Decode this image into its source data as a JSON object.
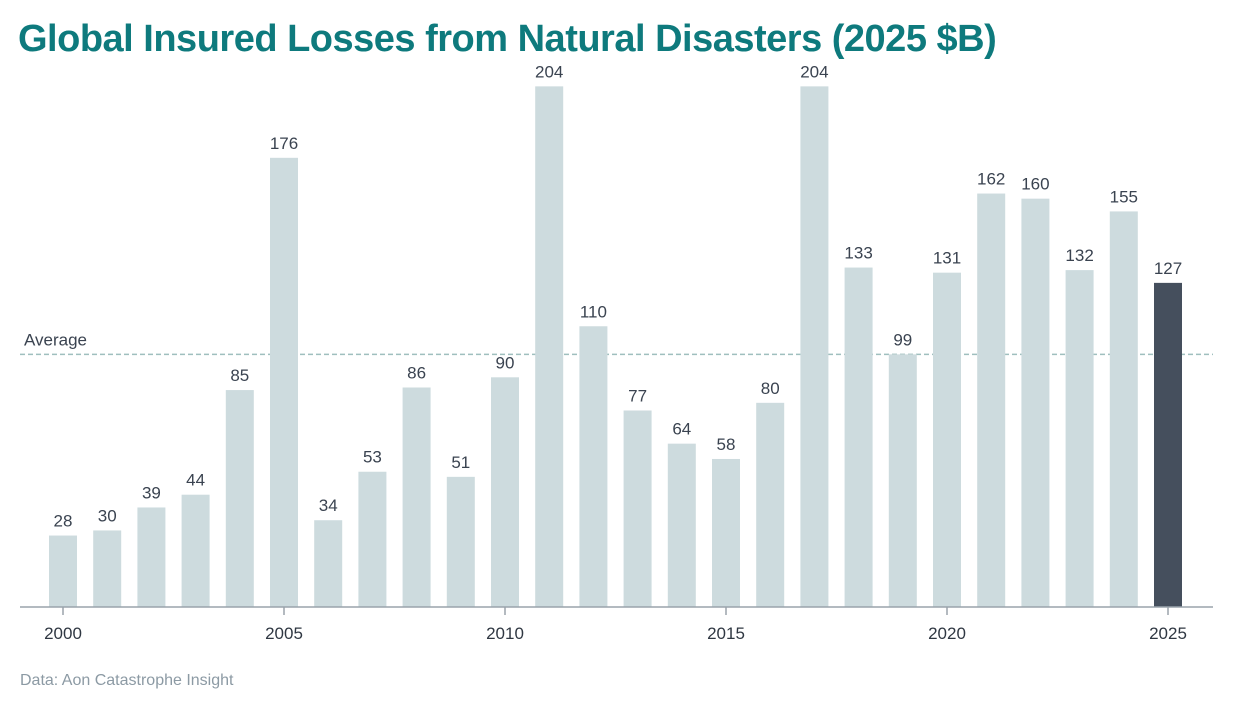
{
  "chart_data": {
    "type": "bar",
    "title": "Global Insured Losses from Natural Disasters (2025 $B)",
    "source": "Data: Aon Catastrophe Insight",
    "xlabel": "",
    "ylabel": "",
    "categories": [
      "2000",
      "2001",
      "2002",
      "2003",
      "2004",
      "2005",
      "2006",
      "2007",
      "2008",
      "2009",
      "2010",
      "2011",
      "2012",
      "2013",
      "2014",
      "2015",
      "2016",
      "2017",
      "2018",
      "2019",
      "2020",
      "2021",
      "2022",
      "2023",
      "2024",
      "2025"
    ],
    "values": [
      28,
      30,
      39,
      44,
      85,
      176,
      34,
      53,
      86,
      51,
      90,
      204,
      110,
      77,
      64,
      58,
      80,
      204,
      133,
      99,
      131,
      162,
      160,
      132,
      155,
      127
    ],
    "value_labels": [
      "28",
      "30",
      "39",
      "44",
      "85",
      "176",
      "34",
      "53",
      "86",
      "51",
      "90",
      "204",
      "110",
      "77",
      "64",
      "58",
      "80",
      "204",
      "133",
      "99",
      "131",
      "162",
      "160",
      "132",
      "155",
      "127"
    ],
    "x_ticks": [
      "2000",
      "2005",
      "2010",
      "2015",
      "2020",
      "2025"
    ],
    "ylim": [
      0,
      230
    ],
    "grid": false,
    "reference_line": {
      "label": "Average",
      "value": 99
    },
    "highlight_index": 25,
    "colors": {
      "bar": "#cddbde",
      "highlight": "#454f5d",
      "average_line": "#9fbfbe",
      "axis": "#9aa3ab",
      "title": "#0e7a7d",
      "source": "#8c9aa4"
    }
  }
}
